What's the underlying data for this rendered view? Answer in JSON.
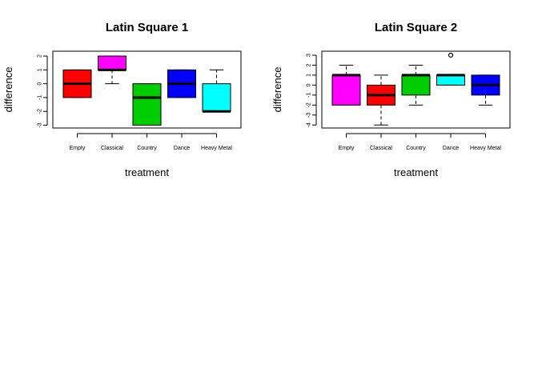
{
  "chart_data": [
    {
      "type": "boxplot",
      "title": "Latin Square 1",
      "xlabel": "treatment",
      "ylabel": "difference",
      "ylim": [
        -3.2,
        2.35
      ],
      "yticks": [
        -3,
        -2,
        -1,
        0,
        1,
        2
      ],
      "categories": [
        "Empty",
        "Classical",
        "Country",
        "Dance",
        "Heavy Metal"
      ],
      "colors": [
        "#ff0000",
        "#ff00ff",
        "#00cd00",
        "#0000ff",
        "#00ffff"
      ],
      "boxes": [
        {
          "whisker_low": -1,
          "q1": -1,
          "median": 0,
          "q3": 1,
          "whisker_high": 1,
          "outliers": []
        },
        {
          "whisker_low": 0,
          "q1": 1,
          "median": 1,
          "q3": 2,
          "whisker_high": 2,
          "outliers": []
        },
        {
          "whisker_low": -3,
          "q1": -3,
          "median": -1,
          "q3": 0,
          "whisker_high": 0,
          "outliers": []
        },
        {
          "whisker_low": -1,
          "q1": -1,
          "median": 0,
          "q3": 1,
          "whisker_high": 1,
          "outliers": []
        },
        {
          "whisker_low": -2,
          "q1": -2,
          "median": -2,
          "q3": 0,
          "whisker_high": 1,
          "outliers": []
        }
      ]
    },
    {
      "type": "boxplot",
      "title": "Latin Square 2",
      "xlabel": "treatment",
      "ylabel": "difference",
      "ylim": [
        -4.3,
        3.4
      ],
      "yticks": [
        -4,
        -3,
        -2,
        -1,
        0,
        1,
        2,
        3
      ],
      "categories": [
        "Empty",
        "Classical",
        "Country",
        "Dance",
        "Heavy Metal"
      ],
      "colors": [
        "#ff00ff",
        "#ff0000",
        "#00cd00",
        "#00ffff",
        "#0000ff"
      ],
      "boxes": [
        {
          "whisker_low": -2,
          "q1": -2,
          "median": 1,
          "q3": 1,
          "whisker_high": 2,
          "outliers": []
        },
        {
          "whisker_low": -4,
          "q1": -2,
          "median": -1,
          "q3": 0,
          "whisker_high": 1,
          "outliers": []
        },
        {
          "whisker_low": -2,
          "q1": -1,
          "median": 1,
          "q3": 1,
          "whisker_high": 2,
          "outliers": []
        },
        {
          "whisker_low": 0,
          "q1": 0,
          "median": 1,
          "q3": 1,
          "whisker_high": 1,
          "outliers": [
            3
          ]
        },
        {
          "whisker_low": -2,
          "q1": -1,
          "median": 0,
          "q3": 1,
          "whisker_high": 1,
          "outliers": []
        }
      ]
    }
  ]
}
